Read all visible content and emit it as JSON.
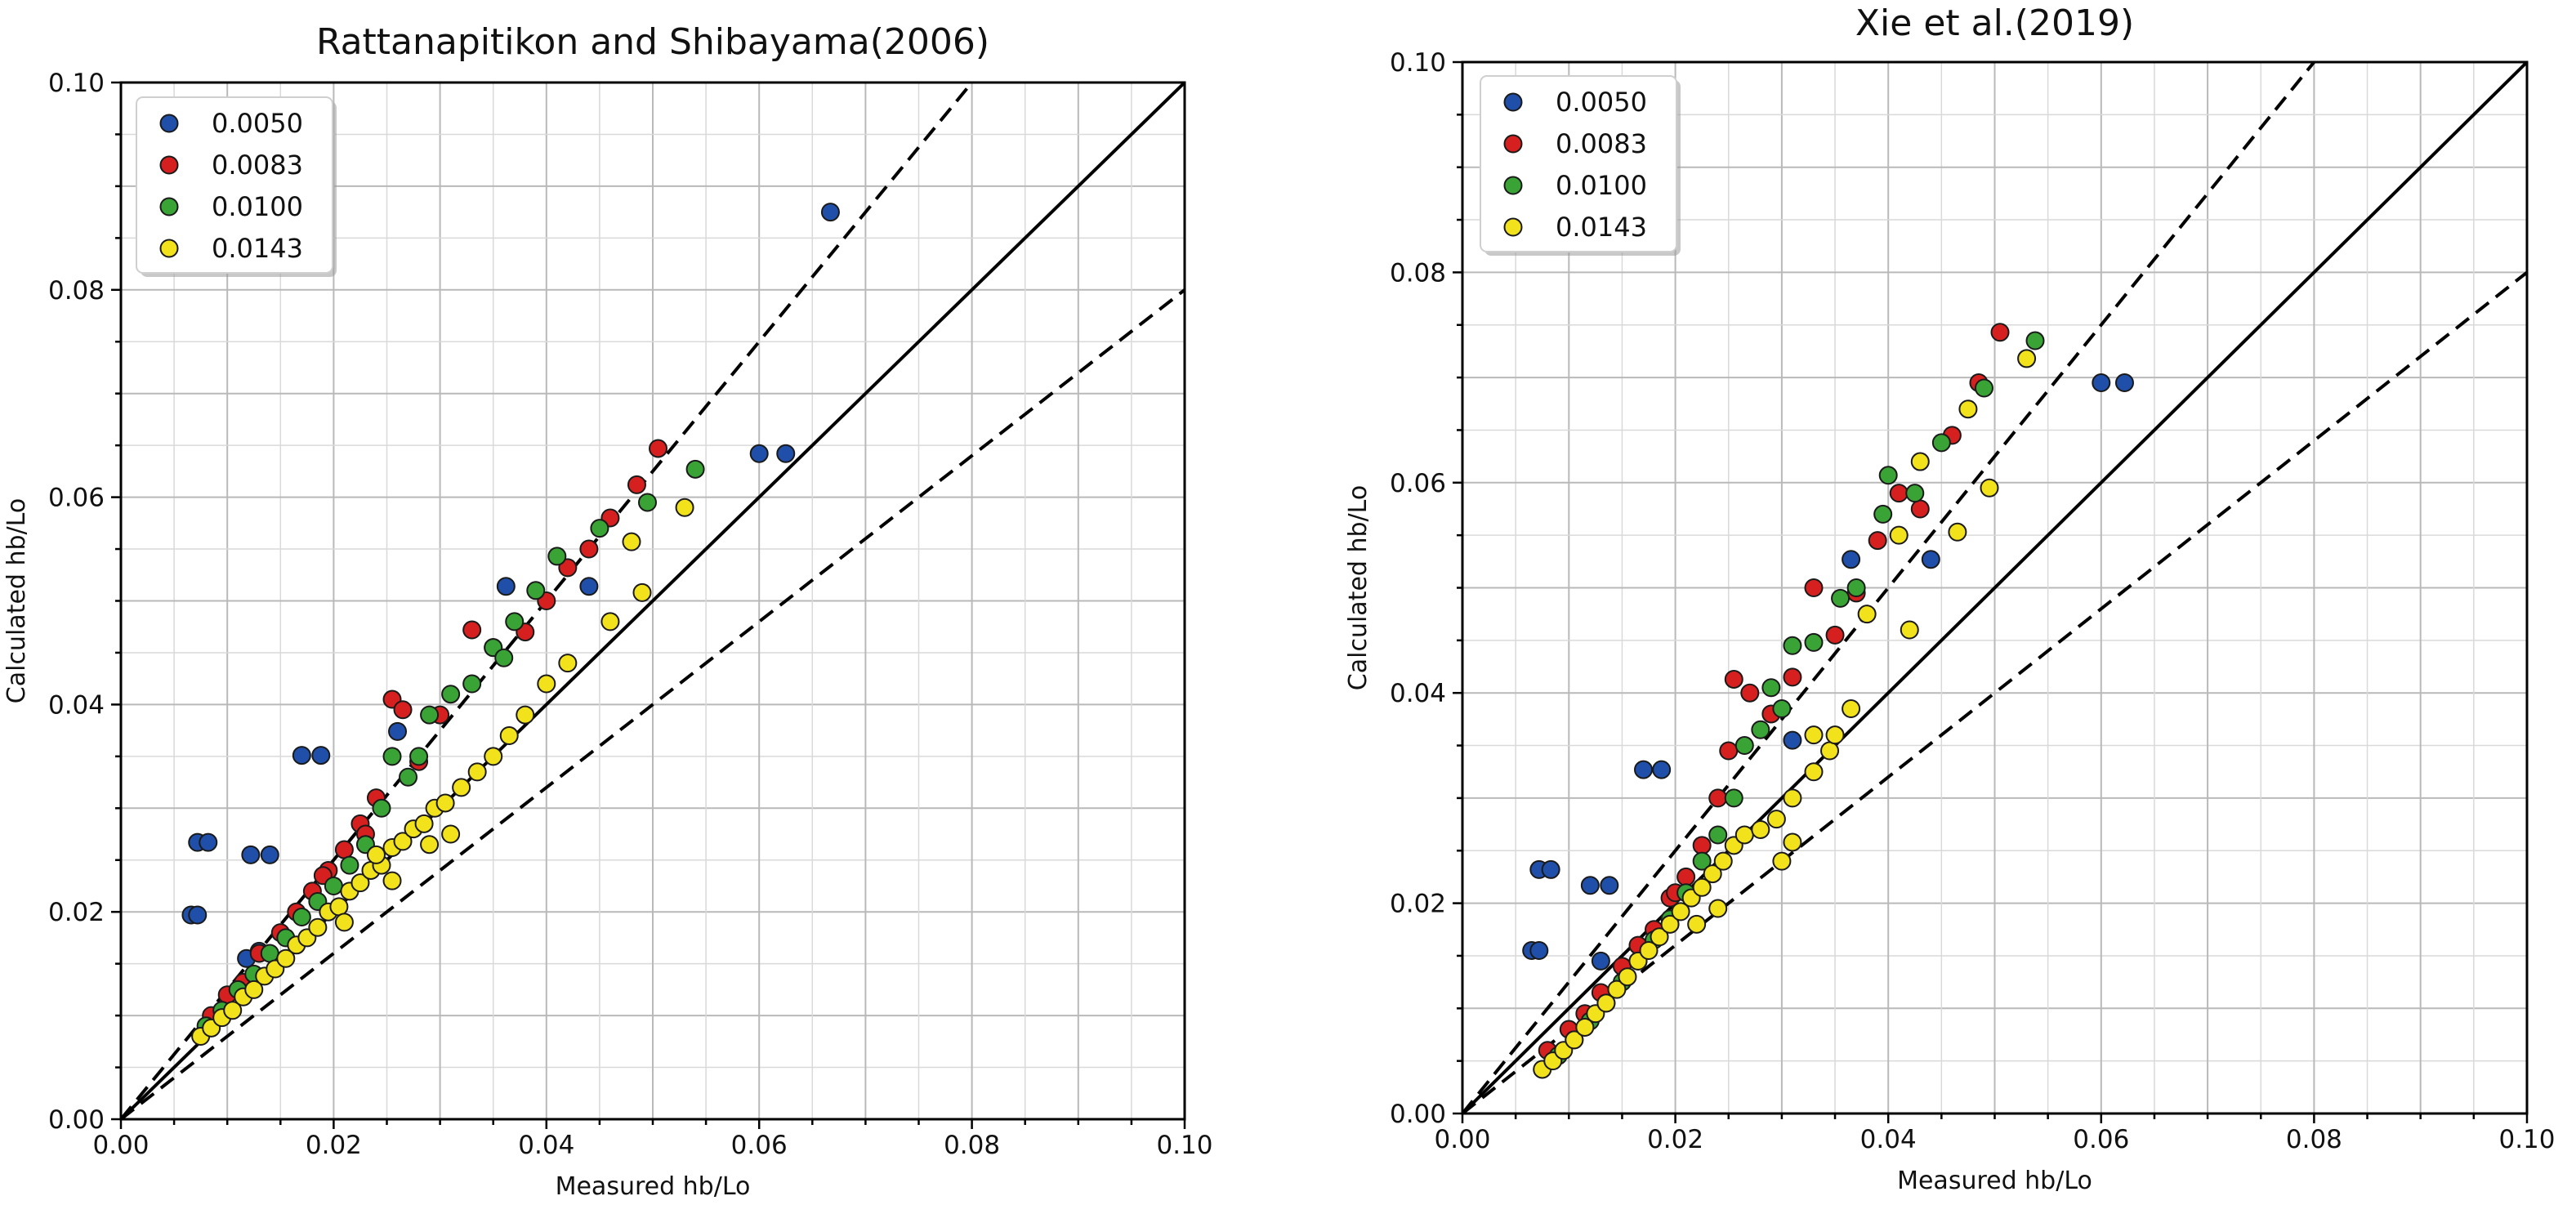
{
  "chart_data": [
    {
      "type": "scatter",
      "title": "Rattanapitikon and Shibayama(2006)",
      "xlabel": "Measured hb/Lo",
      "ylabel": "Calculated hb/Lo",
      "xlim": [
        0,
        0.1
      ],
      "ylim": [
        0,
        0.1
      ],
      "x_ticks": [
        "0.00",
        "0.02",
        "0.04",
        "0.06",
        "0.08",
        "0.10"
      ],
      "y_ticks": [
        "0.00",
        "0.02",
        "0.04",
        "0.06",
        "0.08",
        "0.10"
      ],
      "grid": "major and minor",
      "legend_position": "top-left",
      "reference_lines": [
        {
          "style": "solid",
          "slope": 1.0
        },
        {
          "style": "dashed",
          "slope": 1.25
        },
        {
          "style": "dashed",
          "slope": 0.8
        }
      ],
      "series": [
        {
          "name": "0.0050",
          "color": "#1f4fa8",
          "points": [
            [
              0.0066,
              0.0197
            ],
            [
              0.0072,
              0.0197
            ],
            [
              0.0072,
              0.0267
            ],
            [
              0.0082,
              0.0267
            ],
            [
              0.0122,
              0.0255
            ],
            [
              0.014,
              0.0255
            ],
            [
              0.017,
              0.0351
            ],
            [
              0.0188,
              0.0351
            ],
            [
              0.026,
              0.0374
            ],
            [
              0.0362,
              0.0514
            ],
            [
              0.044,
              0.0514
            ],
            [
              0.06,
              0.0642
            ],
            [
              0.0625,
              0.0642
            ],
            [
              0.0667,
              0.0875
            ],
            [
              0.0118,
              0.0155
            ],
            [
              0.013,
              0.0162
            ]
          ]
        },
        {
          "name": "0.0083",
          "color": "#d62020",
          "points": [
            [
              0.0085,
              0.01
            ],
            [
              0.01,
              0.012
            ],
            [
              0.0115,
              0.0132
            ],
            [
              0.013,
              0.016
            ],
            [
              0.015,
              0.018
            ],
            [
              0.0165,
              0.02
            ],
            [
              0.018,
              0.022
            ],
            [
              0.0195,
              0.024
            ],
            [
              0.021,
              0.026
            ],
            [
              0.0225,
              0.0285
            ],
            [
              0.024,
              0.031
            ],
            [
              0.0255,
              0.0405
            ],
            [
              0.0265,
              0.0395
            ],
            [
              0.028,
              0.0345
            ],
            [
              0.03,
              0.039
            ],
            [
              0.033,
              0.0472
            ],
            [
              0.035,
              0.0455
            ],
            [
              0.038,
              0.047
            ],
            [
              0.04,
              0.05
            ],
            [
              0.042,
              0.0532
            ],
            [
              0.044,
              0.055
            ],
            [
              0.046,
              0.058
            ],
            [
              0.0485,
              0.0612
            ],
            [
              0.0505,
              0.0647
            ],
            [
              0.019,
              0.0235
            ],
            [
              0.023,
              0.0275
            ]
          ]
        },
        {
          "name": "0.0100",
          "color": "#3aa336",
          "points": [
            [
              0.008,
              0.009
            ],
            [
              0.0095,
              0.0105
            ],
            [
              0.011,
              0.0125
            ],
            [
              0.0125,
              0.014
            ],
            [
              0.014,
              0.016
            ],
            [
              0.0155,
              0.0175
            ],
            [
              0.017,
              0.0195
            ],
            [
              0.0185,
              0.021
            ],
            [
              0.02,
              0.0225
            ],
            [
              0.0215,
              0.0245
            ],
            [
              0.023,
              0.0265
            ],
            [
              0.0245,
              0.03
            ],
            [
              0.0255,
              0.035
            ],
            [
              0.027,
              0.033
            ],
            [
              0.029,
              0.039
            ],
            [
              0.031,
              0.041
            ],
            [
              0.033,
              0.042
            ],
            [
              0.035,
              0.0455
            ],
            [
              0.037,
              0.048
            ],
            [
              0.039,
              0.051
            ],
            [
              0.041,
              0.0543
            ],
            [
              0.045,
              0.057
            ],
            [
              0.0495,
              0.0595
            ],
            [
              0.054,
              0.0627
            ],
            [
              0.028,
              0.035
            ],
            [
              0.036,
              0.0445
            ]
          ]
        },
        {
          "name": "0.0143",
          "color": "#f2e21c",
          "points": [
            [
              0.0075,
              0.008
            ],
            [
              0.0085,
              0.0088
            ],
            [
              0.0095,
              0.0098
            ],
            [
              0.0105,
              0.0105
            ],
            [
              0.0115,
              0.0118
            ],
            [
              0.0125,
              0.0125
            ],
            [
              0.0135,
              0.0138
            ],
            [
              0.0145,
              0.0145
            ],
            [
              0.0155,
              0.0155
            ],
            [
              0.0165,
              0.0168
            ],
            [
              0.0175,
              0.0175
            ],
            [
              0.0185,
              0.0185
            ],
            [
              0.0195,
              0.02
            ],
            [
              0.0205,
              0.0205
            ],
            [
              0.0215,
              0.022
            ],
            [
              0.0225,
              0.0228
            ],
            [
              0.0235,
              0.024
            ],
            [
              0.0245,
              0.0245
            ],
            [
              0.0255,
              0.0262
            ],
            [
              0.0265,
              0.0268
            ],
            [
              0.0275,
              0.028
            ],
            [
              0.0285,
              0.0285
            ],
            [
              0.0295,
              0.03
            ],
            [
              0.0305,
              0.0305
            ],
            [
              0.032,
              0.032
            ],
            [
              0.0335,
              0.0335
            ],
            [
              0.035,
              0.035
            ],
            [
              0.0365,
              0.037
            ],
            [
              0.038,
              0.039
            ],
            [
              0.04,
              0.042
            ],
            [
              0.042,
              0.044
            ],
            [
              0.046,
              0.048
            ],
            [
              0.049,
              0.0508
            ],
            [
              0.048,
              0.0557
            ],
            [
              0.053,
              0.059
            ],
            [
              0.0255,
              0.023
            ],
            [
              0.024,
              0.0255
            ],
            [
              0.021,
              0.019
            ],
            [
              0.029,
              0.0265
            ],
            [
              0.031,
              0.0275
            ]
          ]
        }
      ]
    },
    {
      "type": "scatter",
      "title": "Xie et al.(2019)",
      "xlabel": "Measured hb/Lo",
      "ylabel": "Calculated hb/Lo",
      "xlim": [
        0,
        0.1
      ],
      "ylim": [
        0,
        0.1
      ],
      "x_ticks": [
        "0.00",
        "0.02",
        "0.04",
        "0.06",
        "0.08",
        "0.10"
      ],
      "y_ticks": [
        "0.00",
        "0.02",
        "0.04",
        "0.06",
        "0.08",
        "0.10"
      ],
      "grid": "major and minor",
      "legend_position": "top-left",
      "reference_lines": [
        {
          "style": "solid",
          "slope": 1.0
        },
        {
          "style": "dashed",
          "slope": 1.25
        },
        {
          "style": "dashed",
          "slope": 0.8
        }
      ],
      "series": [
        {
          "name": "0.0050",
          "color": "#1f4fa8",
          "points": [
            [
              0.0065,
              0.0155
            ],
            [
              0.0072,
              0.0155
            ],
            [
              0.0072,
              0.0232
            ],
            [
              0.0083,
              0.0232
            ],
            [
              0.012,
              0.0217
            ],
            [
              0.0138,
              0.0217
            ],
            [
              0.017,
              0.0327
            ],
            [
              0.0187,
              0.0327
            ],
            [
              0.031,
              0.0355
            ],
            [
              0.0365,
              0.0527
            ],
            [
              0.044,
              0.0527
            ],
            [
              0.06,
              0.0695
            ],
            [
              0.0622,
              0.0695
            ],
            [
              0.013,
              0.0145
            ]
          ]
        },
        {
          "name": "0.0083",
          "color": "#d62020",
          "points": [
            [
              0.008,
              0.006
            ],
            [
              0.01,
              0.008
            ],
            [
              0.0115,
              0.0095
            ],
            [
              0.013,
              0.0115
            ],
            [
              0.015,
              0.014
            ],
            [
              0.0165,
              0.016
            ],
            [
              0.018,
              0.0175
            ],
            [
              0.0195,
              0.0205
            ],
            [
              0.021,
              0.0225
            ],
            [
              0.0225,
              0.0255
            ],
            [
              0.024,
              0.03
            ],
            [
              0.0255,
              0.0413
            ],
            [
              0.027,
              0.04
            ],
            [
              0.029,
              0.038
            ],
            [
              0.031,
              0.0415
            ],
            [
              0.033,
              0.05
            ],
            [
              0.035,
              0.0455
            ],
            [
              0.037,
              0.0495
            ],
            [
              0.039,
              0.0545
            ],
            [
              0.041,
              0.059
            ],
            [
              0.043,
              0.0575
            ],
            [
              0.046,
              0.0645
            ],
            [
              0.0485,
              0.0695
            ],
            [
              0.0505,
              0.0743
            ],
            [
              0.02,
              0.021
            ],
            [
              0.025,
              0.0345
            ]
          ]
        },
        {
          "name": "0.0100",
          "color": "#3aa336",
          "points": [
            [
              0.009,
              0.0055
            ],
            [
              0.0105,
              0.007
            ],
            [
              0.012,
              0.0088
            ],
            [
              0.0135,
              0.0105
            ],
            [
              0.015,
              0.0125
            ],
            [
              0.0165,
              0.0145
            ],
            [
              0.018,
              0.0165
            ],
            [
              0.0195,
              0.0185
            ],
            [
              0.021,
              0.021
            ],
            [
              0.0225,
              0.024
            ],
            [
              0.024,
              0.0265
            ],
            [
              0.0255,
              0.03
            ],
            [
              0.0265,
              0.035
            ],
            [
              0.028,
              0.0365
            ],
            [
              0.029,
              0.0405
            ],
            [
              0.031,
              0.0445
            ],
            [
              0.033,
              0.0448
            ],
            [
              0.0355,
              0.049
            ],
            [
              0.037,
              0.05
            ],
            [
              0.0395,
              0.057
            ],
            [
              0.04,
              0.0607
            ],
            [
              0.0425,
              0.059
            ],
            [
              0.045,
              0.0638
            ],
            [
              0.049,
              0.069
            ],
            [
              0.0538,
              0.0735
            ],
            [
              0.03,
              0.0385
            ]
          ]
        },
        {
          "name": "0.0143",
          "color": "#f2e21c",
          "points": [
            [
              0.0075,
              0.0042
            ],
            [
              0.0085,
              0.005
            ],
            [
              0.0095,
              0.006
            ],
            [
              0.0105,
              0.007
            ],
            [
              0.0115,
              0.0082
            ],
            [
              0.0125,
              0.0095
            ],
            [
              0.0135,
              0.0105
            ],
            [
              0.0145,
              0.0118
            ],
            [
              0.0155,
              0.013
            ],
            [
              0.0165,
              0.0145
            ],
            [
              0.0175,
              0.0155
            ],
            [
              0.0185,
              0.0168
            ],
            [
              0.0195,
              0.018
            ],
            [
              0.0205,
              0.0192
            ],
            [
              0.0215,
              0.0205
            ],
            [
              0.0225,
              0.0215
            ],
            [
              0.0235,
              0.0228
            ],
            [
              0.0245,
              0.024
            ],
            [
              0.0255,
              0.0255
            ],
            [
              0.0265,
              0.0265
            ],
            [
              0.028,
              0.027
            ],
            [
              0.0295,
              0.028
            ],
            [
              0.031,
              0.03
            ],
            [
              0.033,
              0.0325
            ],
            [
              0.0345,
              0.0345
            ],
            [
              0.0365,
              0.0385
            ],
            [
              0.038,
              0.0475
            ],
            [
              0.041,
              0.055
            ],
            [
              0.043,
              0.062
            ],
            [
              0.0465,
              0.0553
            ],
            [
              0.0475,
              0.067
            ],
            [
              0.0495,
              0.0595
            ],
            [
              0.053,
              0.0718
            ],
            [
              0.042,
              0.046
            ],
            [
              0.03,
              0.024
            ],
            [
              0.024,
              0.0195
            ],
            [
              0.031,
              0.0258
            ],
            [
              0.033,
              0.036
            ],
            [
              0.035,
              0.036
            ],
            [
              0.022,
              0.018
            ]
          ]
        }
      ]
    }
  ]
}
